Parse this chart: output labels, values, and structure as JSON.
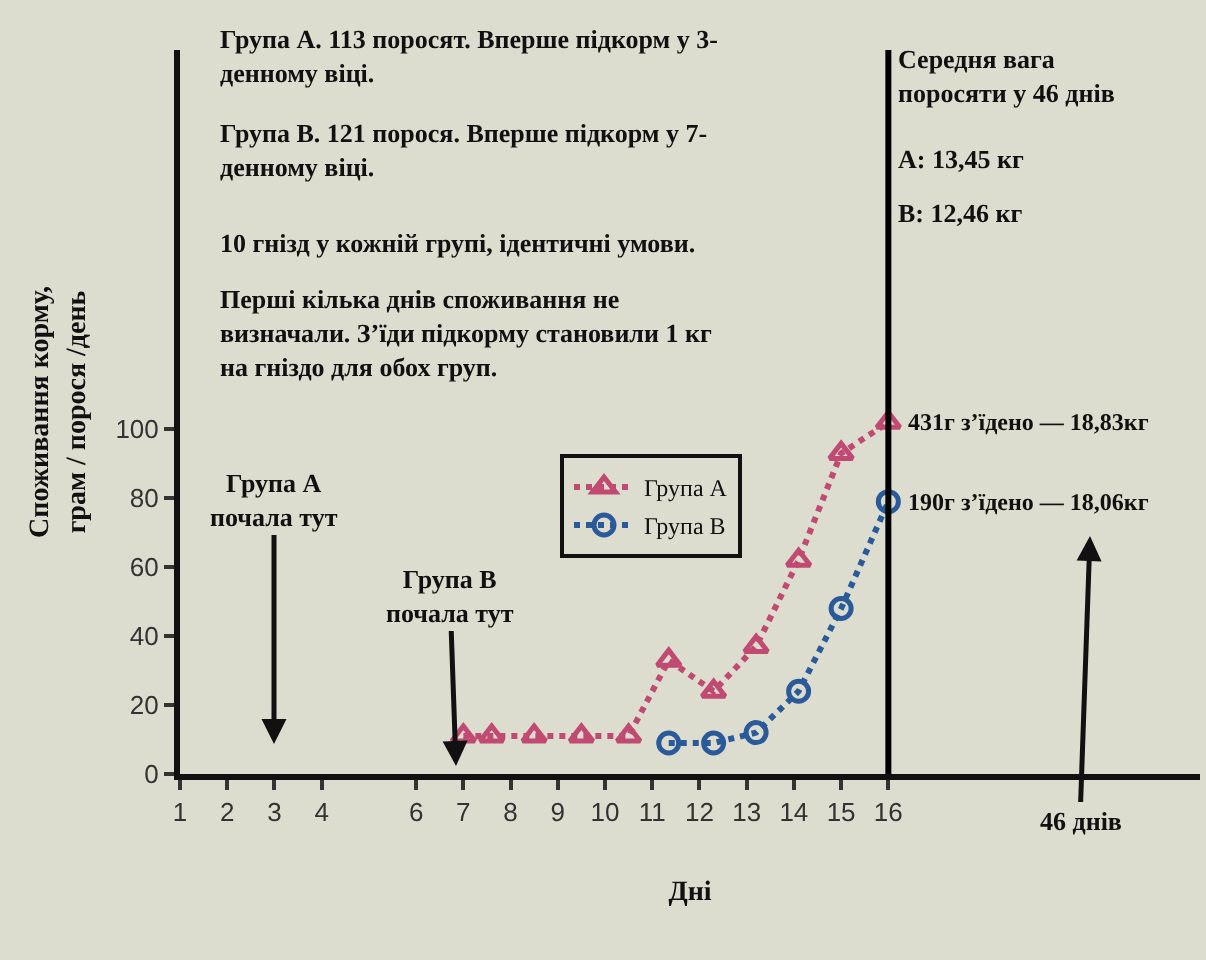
{
  "chart_data": {
    "type": "line",
    "xlabel": "Дні",
    "ylabel": "Споживання корму,\nграм / порося /день",
    "xlim": [
      1,
      22.6
    ],
    "xticks": [
      1,
      2,
      3,
      4,
      6,
      7,
      8,
      9,
      10,
      11,
      12,
      13,
      14,
      15,
      16
    ],
    "ylim": [
      0,
      210
    ],
    "yticks": [
      0,
      20,
      40,
      60,
      80,
      100
    ],
    "grid": false,
    "legend": "left",
    "line_style": "dotted",
    "series": [
      {
        "name": "Група A",
        "color": "#c04a72",
        "marker": "triangle",
        "x": [
          7.0,
          7.6,
          8.5,
          9.5,
          10.5,
          11.35,
          12.3,
          13.2,
          14.1,
          15.0,
          16.0
        ],
        "values": [
          11,
          11,
          11,
          11,
          11,
          33,
          24,
          37,
          62,
          93,
          102
        ]
      },
      {
        "name": "Група B",
        "color": "#2a5a9a",
        "marker": "circle",
        "x": [
          11.35,
          12.3,
          13.2,
          14.1,
          15.0,
          16.0
        ],
        "values": [
          9,
          9,
          12,
          24,
          48,
          79
        ]
      }
    ],
    "ref_lines": [
      {
        "axis": "x",
        "value": 16,
        "color": "#000000"
      }
    ],
    "annotations": [
      "Група A. 113 поросят. Вперше підкорм у 3-\nденному віці.",
      "Група B. 121 порося. Вперше підкорм у 7-\nденному віці.",
      "10 гнізд у кожній групі, ідентичні умови.",
      "Перші кілька днів споживання не\nвизначали. З’їди підкорму становили 1 кг\nна гніздо для обох груп.",
      "Середня вага\nпоросяти у 46 днів",
      "A: 13,45 кг",
      "B: 12,46 кг",
      "Група A\nпочала тут",
      "Група B\nпочала тут",
      {
        "text": "431г з’їдено — 18,83кг",
        "x": 16,
        "y": 102
      },
      {
        "text": "190г з’їдено — 18,06кг",
        "x": 16,
        "y": 79
      },
      "46 днів"
    ]
  }
}
